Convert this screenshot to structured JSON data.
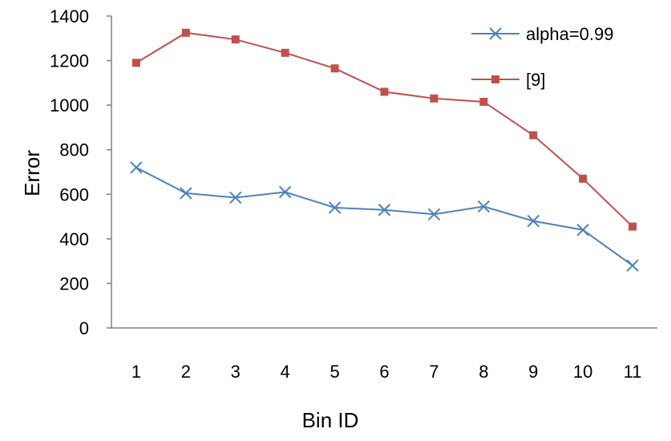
{
  "chart_data": {
    "type": "line",
    "title": "",
    "xlabel": "Bin ID",
    "ylabel": "Error",
    "categories": [
      "1",
      "2",
      "3",
      "4",
      "5",
      "6",
      "7",
      "8",
      "9",
      "10",
      "11"
    ],
    "ylim": [
      0,
      1400
    ],
    "yticks": [
      "0",
      "200",
      "400",
      "600",
      "800",
      "1000",
      "1200",
      "1400"
    ],
    "grid": false,
    "legend_position": "top-right",
    "series": [
      {
        "name": "alpha=0.99",
        "marker": "x",
        "color": "#4f81bd",
        "values": [
          720,
          605,
          585,
          610,
          540,
          530,
          510,
          545,
          480,
          440,
          280
        ]
      },
      {
        "name": "[9]",
        "marker": "square",
        "color": "#c0504d",
        "values": [
          1190,
          1325,
          1295,
          1235,
          1165,
          1060,
          1030,
          1015,
          865,
          670,
          455
        ]
      }
    ]
  }
}
